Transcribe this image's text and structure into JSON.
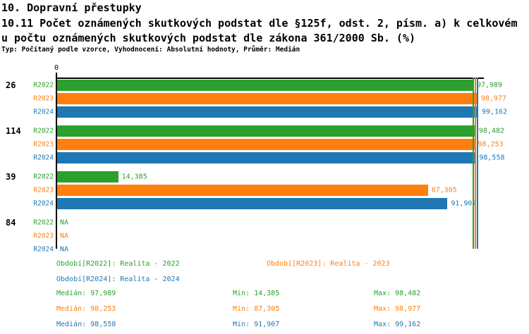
{
  "header": {
    "title": "10. Dopravní přestupky",
    "subtitle_line1": "10.11 Počet oznámených skutkových podstat dle §125f, odst. 2, písm. a) k celkovém",
    "subtitle_line2": "u počtu oznámených skutkových podstat dle zákona 361/2000 Sb. (%)",
    "meta": "Typ: Počítaný podle vzorce, Vyhodnocení: Absolutní hodnoty, Průměr: Medián"
  },
  "colors": {
    "r2022": "#2ca02c",
    "r2023": "#ff7f0e",
    "r2024": "#1f77b4",
    "axis": "#000000",
    "background": "#ffffff"
  },
  "chart_data": {
    "type": "bar",
    "orientation": "horizontal",
    "title": "10.11 Počet oznámených skutkových podstat dle §125f, odst. 2, písm. a) k celkovému počtu oznámených skutkových podstat dle zákona 361/2000 Sb. (%)",
    "categories": [
      "26",
      "114",
      "39",
      "84"
    ],
    "series": [
      {
        "name": "R2022",
        "color": "#2ca02c",
        "values": [
          97.989,
          98.482,
          14.385,
          null
        ],
        "value_labels": [
          "97,989",
          "98,482",
          "14,385",
          "NA"
        ],
        "median": 97.989
      },
      {
        "name": "R2023",
        "color": "#ff7f0e",
        "values": [
          98.977,
          98.253,
          87.305,
          null
        ],
        "value_labels": [
          "98,977",
          "98,253",
          "87,305",
          "NA"
        ],
        "median": 98.253
      },
      {
        "name": "R2024",
        "color": "#1f77b4",
        "values": [
          99.162,
          98.558,
          91.907,
          null
        ],
        "value_labels": [
          "99,162",
          "98,558",
          "91,907",
          "NA"
        ],
        "median": 98.558
      }
    ],
    "x_axis": {
      "tick_labels": [
        "0"
      ],
      "range": [
        0,
        100
      ],
      "position": "top"
    },
    "grid": false,
    "median_lines": true,
    "legend_position": "bottom"
  },
  "legend": {
    "items": [
      {
        "label": "Období[R2022]: Realita - 2022",
        "color": "#2ca02c"
      },
      {
        "label": "Období[R2023]: Realita - 2023",
        "color": "#ff7f0e"
      },
      {
        "label": "Období[R2024]: Realita - 2024",
        "color": "#1f77b4"
      }
    ]
  },
  "stats": {
    "rows": [
      {
        "color": "#2ca02c",
        "median": "Medián: 97,989",
        "min": "Min: 14,385",
        "max": "Max: 98,482"
      },
      {
        "color": "#ff7f0e",
        "median": "Medián: 98,253",
        "min": "Min: 87,305",
        "max": "Max: 98,977"
      },
      {
        "color": "#1f77b4",
        "median": "Medián: 98,558",
        "min": "Min: 91,907",
        "max": "Max: 99,162"
      }
    ]
  }
}
